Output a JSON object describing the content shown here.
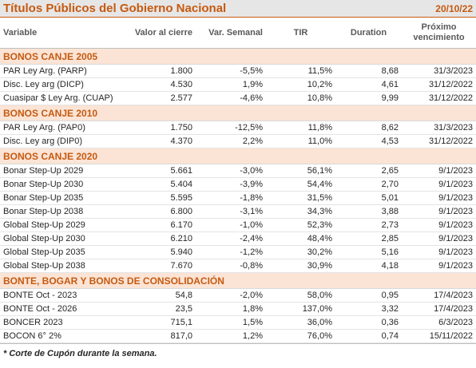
{
  "header": {
    "title": "Títulos Públicos del Gobierno Nacional",
    "date": "20/10/22"
  },
  "table": {
    "columns": [
      "Variable",
      "Valor al cierre",
      "Var. Semanal",
      "TIR",
      "Duration",
      "Próximo vencimiento"
    ],
    "sections": [
      {
        "title": "BONOS CANJE 2005",
        "rows": [
          [
            "PAR Ley Arg. (PARP)",
            "1.800",
            "-5,5%",
            "11,5%",
            "8,68",
            "31/3/2023"
          ],
          [
            "Disc. Ley arg (DICP)",
            "4.530",
            "1,9%",
            "10,2%",
            "4,61",
            "31/12/2022"
          ],
          [
            "Cuasipar $ Ley Arg. (CUAP)",
            "2.577",
            "-4,6%",
            "10,8%",
            "9,99",
            "31/12/2022"
          ]
        ]
      },
      {
        "title": "BONOS CANJE 2010",
        "rows": [
          [
            "PAR Ley Arg. (PAP0)",
            "1.750",
            "-12,5%",
            "11,8%",
            "8,62",
            "31/3/2023"
          ],
          [
            "Disc. Ley arg (DIP0)",
            "4.370",
            "2,2%",
            "11,0%",
            "4,53",
            "31/12/2022"
          ]
        ]
      },
      {
        "title": "BONOS CANJE 2020",
        "rows": [
          [
            "Bonar Step-Up 2029",
            "5.661",
            "-3,0%",
            "56,1%",
            "2,65",
            "9/1/2023"
          ],
          [
            "Bonar Step-Up 2030",
            "5.404",
            "-3,9%",
            "54,4%",
            "2,70",
            "9/1/2023"
          ],
          [
            "Bonar Step-Up 2035",
            "5.595",
            "-1,8%",
            "31,5%",
            "5,01",
            "9/1/2023"
          ],
          [
            "Bonar Step-Up 2038",
            "6.800",
            "-3,1%",
            "34,3%",
            "3,88",
            "9/1/2023"
          ],
          [
            "Global Step-Up 2029",
            "6.170",
            "-1,0%",
            "52,3%",
            "2,73",
            "9/1/2023"
          ],
          [
            "Global Step-Up 2030",
            "6.210",
            "-2,4%",
            "48,4%",
            "2,85",
            "9/1/2023"
          ],
          [
            "Global Step-Up 2035",
            "5.940",
            "-1,2%",
            "30,2%",
            "5,16",
            "9/1/2023"
          ],
          [
            "Global Step-Up 2038",
            "7.670",
            "-0,8%",
            "30,9%",
            "4,18",
            "9/1/2023"
          ]
        ]
      },
      {
        "title": "BONTE, BOGAR Y BONOS DE CONSOLIDACIÓN",
        "rows": [
          [
            "BONTE Oct - 2023",
            "54,8",
            "-2,0%",
            "58,0%",
            "0,95",
            "17/4/2023"
          ],
          [
            "BONTE Oct - 2026",
            "23,5",
            "1,8%",
            "137,0%",
            "3,32",
            "17/4/2023"
          ],
          [
            "BONCER 2023",
            "715,1",
            "1,5%",
            "36,0%",
            "0,36",
            "6/3/2023"
          ],
          [
            "BOCON 6° 2%",
            "817,0",
            "1,2%",
            "76,0%",
            "0,74",
            "15/11/2022"
          ]
        ]
      }
    ]
  },
  "footnote": "* Corte de Cupón durante la semana."
}
